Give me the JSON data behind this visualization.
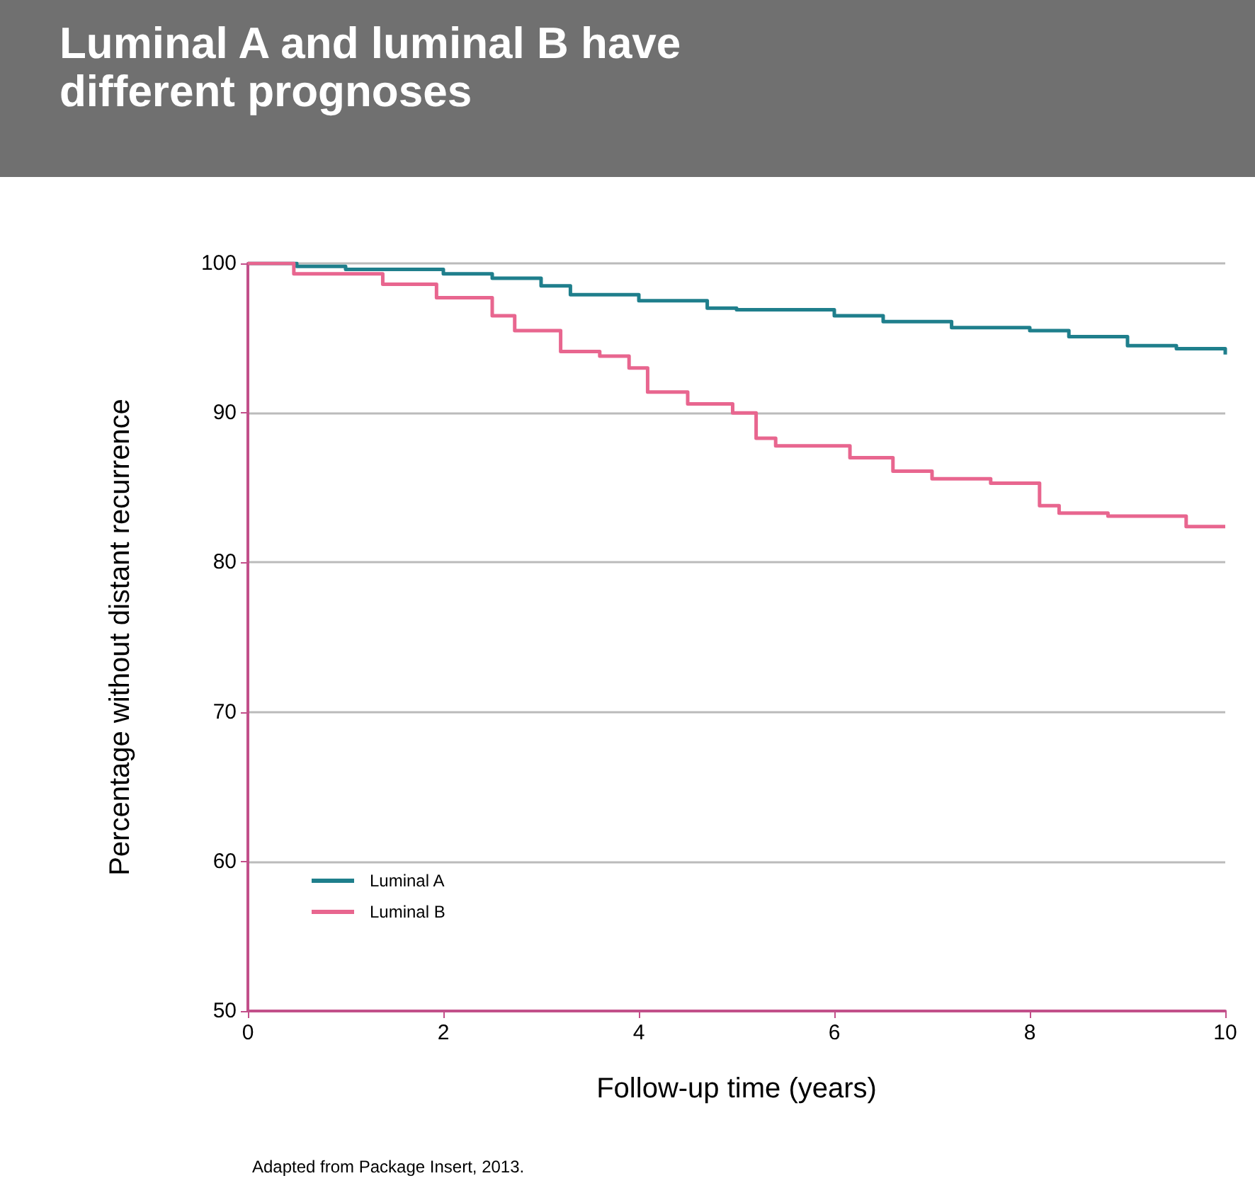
{
  "chart_data": {
    "type": "step",
    "title": "Luminal A and luminal B have different prognoses",
    "xlabel": "Follow-up time (years)",
    "ylabel": "Percentage without distant recurrence",
    "annotations": [
      "Adapted from Package Insert, 2013."
    ],
    "xlim": [
      0,
      10
    ],
    "xticks": [
      0,
      2,
      4,
      6,
      8,
      10
    ],
    "ylim": [
      50,
      100
    ],
    "yticks": [
      50,
      60,
      70,
      80,
      90,
      100
    ],
    "grid": "y",
    "legend": "bottom left",
    "marker": "none",
    "line_style": "solid",
    "series": [
      {
        "name": "Luminal A",
        "color": "#1f7f8c",
        "x": [
          0,
          0.5,
          1.0,
          2.0,
          2.5,
          3.0,
          3.3,
          4.0,
          4.7,
          5.0,
          6.0,
          6.5,
          7.2,
          8.0,
          8.4,
          9.0,
          9.5,
          9.97,
          10
        ],
        "values": [
          100,
          99.8,
          99.6,
          99.3,
          99.0,
          98.5,
          97.9,
          97.5,
          97.0,
          96.9,
          96.5,
          96.1,
          95.7,
          95.5,
          95.1,
          94.5,
          94.3,
          94.3,
          93.9
        ]
      },
      {
        "name": "Luminal B",
        "color": "#e8668f",
        "x": [
          0,
          0.47,
          1.38,
          1.93,
          2.5,
          2.73,
          3.2,
          3.6,
          3.9,
          4.09,
          4.5,
          4.96,
          5.2,
          5.4,
          6.16,
          6.6,
          7.0,
          7.6,
          8.1,
          8.3,
          8.8,
          9.6,
          10
        ],
        "values": [
          100,
          99.3,
          98.6,
          97.7,
          96.5,
          95.5,
          94.1,
          93.8,
          93.0,
          91.4,
          90.6,
          90.0,
          88.3,
          87.8,
          87.0,
          86.1,
          85.6,
          85.3,
          83.8,
          83.3,
          83.1,
          82.4,
          82.4
        ]
      }
    ]
  }
}
